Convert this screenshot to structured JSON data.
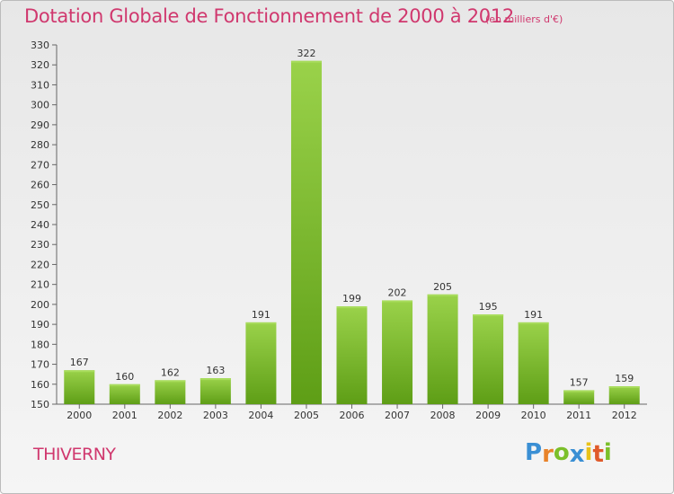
{
  "title": "Dotation Globale de Fonctionnement de 2000 à 2012",
  "subtitle": "(en milliers d'€)",
  "commune": "THIVERNY",
  "logo": {
    "text": "Proxiti",
    "letters": [
      {
        "ch": "P",
        "color": "#3a8fd4"
      },
      {
        "ch": "r",
        "color": "#e8832a"
      },
      {
        "ch": "o",
        "color": "#7bbf2a"
      },
      {
        "ch": "x",
        "color": "#3a8fd4"
      },
      {
        "ch": "i",
        "color": "#e8c21a"
      },
      {
        "ch": "t",
        "color": "#e05a2a"
      },
      {
        "ch": "i",
        "color": "#7bbf2a"
      }
    ]
  },
  "chart_data": {
    "type": "bar",
    "categories": [
      "2000",
      "2001",
      "2002",
      "2003",
      "2004",
      "2005",
      "2006",
      "2007",
      "2008",
      "2009",
      "2010",
      "2011",
      "2012"
    ],
    "values": [
      167,
      160,
      162,
      163,
      191,
      322,
      199,
      202,
      205,
      195,
      191,
      157,
      159
    ],
    "ylim": [
      150,
      330
    ],
    "ytick_step": 10,
    "grid": false,
    "bar_color": "#7cc12f",
    "bar_color_dark": "#5e9e16"
  }
}
